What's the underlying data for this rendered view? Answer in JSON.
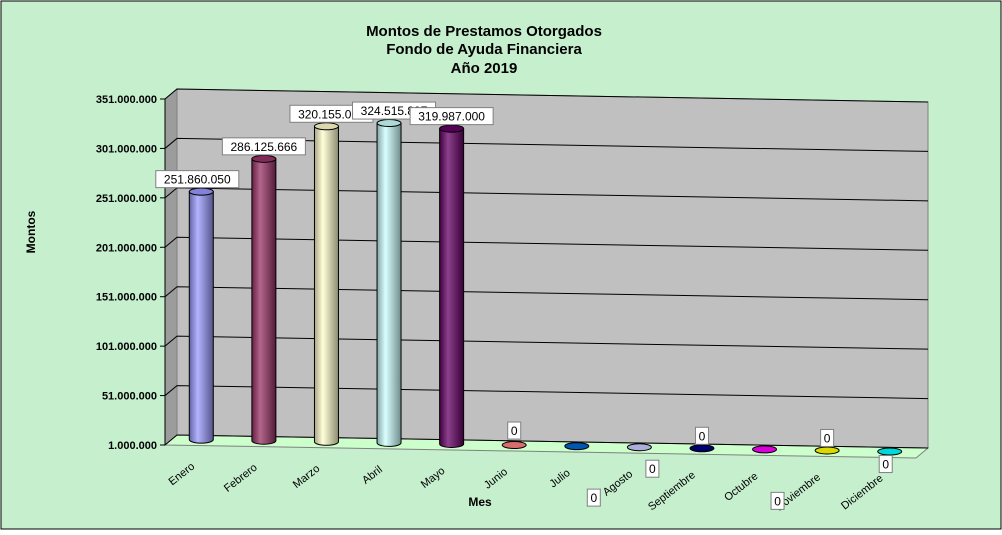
{
  "chart_data": {
    "type": "bar",
    "title": [
      "Montos de Prestamos Otorgados",
      "Fondo de Ayuda Financiera",
      "Año 2019"
    ],
    "xlabel": "Mes",
    "ylabel": "Montos",
    "categories": [
      "Enero",
      "Febrero",
      "Marzo",
      "Abril",
      "Mayo",
      "Junio",
      "Julio",
      "Agosto",
      "Septiembre",
      "Octubre",
      "Noviembre",
      "Diciembre"
    ],
    "values": [
      251860050,
      286125666,
      320155000,
      324515897,
      319987000,
      0,
      0,
      0,
      0,
      0,
      0,
      0
    ],
    "data_labels": [
      "251.860.050",
      "286.125.666",
      "320.155.000",
      "324.515.897",
      "319.987.000",
      "0",
      "0",
      "0",
      "0",
      "0",
      "0",
      "0"
    ],
    "yticks": [
      "1.000.000",
      "51.000.000",
      "101.000.000",
      "151.000.000",
      "201.000.000",
      "251.000.000",
      "301.000.000",
      "351.000.000"
    ],
    "ylim": [
      1000000,
      351000000
    ],
    "grid": true,
    "legend": "none",
    "colors": {
      "background": "#C6EFCE",
      "plot_wall": "#C0C0C0",
      "floor": "#CCFFCC",
      "bars": [
        "#9999FF",
        "#993366",
        "#FFFFCC",
        "#CCFFFF",
        "#660066",
        "#FF8080",
        "#0066CC",
        "#CCCCFF",
        "#000080",
        "#FF00FF",
        "#FFFF00",
        "#00FFFF"
      ]
    }
  }
}
